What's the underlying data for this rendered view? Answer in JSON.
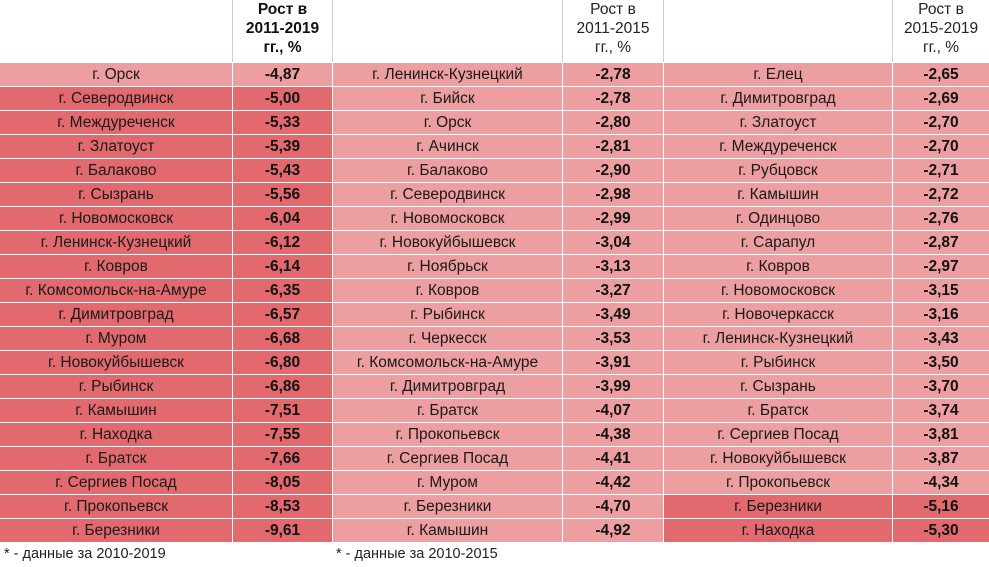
{
  "colors": {
    "light": "#ec9ea0",
    "dark": "#e26a6f",
    "border": "#ffffff"
  },
  "table1": {
    "header": [
      "Рост в",
      "2011-2019",
      "гг., %"
    ],
    "rows": [
      {
        "city": "г. Орск",
        "value": "-4,87",
        "tone": "light"
      },
      {
        "city": "г. Северодвинск",
        "value": "-5,00",
        "tone": "dark"
      },
      {
        "city": "г. Междуреченск",
        "value": "-5,33",
        "tone": "dark"
      },
      {
        "city": "г. Златоуст",
        "value": "-5,39",
        "tone": "dark"
      },
      {
        "city": "г. Балаково",
        "value": "-5,43",
        "tone": "dark"
      },
      {
        "city": "г. Сызрань",
        "value": "-5,56",
        "tone": "dark"
      },
      {
        "city": "г. Новомосковск",
        "value": "-6,04",
        "tone": "dark"
      },
      {
        "city": "г. Ленинск-Кузнецкий",
        "value": "-6,12",
        "tone": "dark"
      },
      {
        "city": "г. Ковров",
        "value": "-6,14",
        "tone": "dark"
      },
      {
        "city": "г. Комсомольск-на-Амуре",
        "value": "-6,35",
        "tone": "dark"
      },
      {
        "city": "г. Димитровград",
        "value": "-6,57",
        "tone": "dark"
      },
      {
        "city": "г. Муром",
        "value": "-6,68",
        "tone": "dark"
      },
      {
        "city": "г. Новокуйбышевск",
        "value": "-6,80",
        "tone": "dark"
      },
      {
        "city": "г. Рыбинск",
        "value": "-6,86",
        "tone": "dark"
      },
      {
        "city": "г. Камышин",
        "value": "-7,51",
        "tone": "dark"
      },
      {
        "city": "г. Находка",
        "value": "-7,55",
        "tone": "dark"
      },
      {
        "city": "г. Братск",
        "value": "-7,66",
        "tone": "dark"
      },
      {
        "city": "г. Сергиев Посад",
        "value": "-8,05",
        "tone": "dark"
      },
      {
        "city": "г. Прокопьевск",
        "value": "-8,53",
        "tone": "dark"
      },
      {
        "city": "г. Березники",
        "value": "-9,61",
        "tone": "dark"
      }
    ],
    "note": "* - данные за 2010-2019"
  },
  "table2": {
    "header": [
      "Рост в",
      "2011-2015",
      "гг., %"
    ],
    "rows": [
      {
        "city": "г. Ленинск-Кузнецкий",
        "value": "-2,78",
        "tone": "light"
      },
      {
        "city": "г. Бийск",
        "value": "-2,78",
        "tone": "light"
      },
      {
        "city": "г. Орск",
        "value": "-2,80",
        "tone": "light"
      },
      {
        "city": "г. Ачинск",
        "value": "-2,81",
        "tone": "light"
      },
      {
        "city": "г. Балаково",
        "value": "-2,90",
        "tone": "light"
      },
      {
        "city": "г. Северодвинск",
        "value": "-2,98",
        "tone": "light"
      },
      {
        "city": "г. Новомосковск",
        "value": "-2,99",
        "tone": "light"
      },
      {
        "city": "г. Новокуйбышевск",
        "value": "-3,04",
        "tone": "light"
      },
      {
        "city": "г. Ноябрьск",
        "value": "-3,13",
        "tone": "light"
      },
      {
        "city": "г. Ковров",
        "value": "-3,27",
        "tone": "light"
      },
      {
        "city": "г. Рыбинск",
        "value": "-3,49",
        "tone": "light"
      },
      {
        "city": "г. Черкесск",
        "value": "-3,53",
        "tone": "light"
      },
      {
        "city": "г. Комсомольск-на-Амуре",
        "value": "-3,91",
        "tone": "light"
      },
      {
        "city": "г. Димитровград",
        "value": "-3,99",
        "tone": "light"
      },
      {
        "city": "г. Братск",
        "value": "-4,07",
        "tone": "light"
      },
      {
        "city": "г. Прокопьевск",
        "value": "-4,38",
        "tone": "light"
      },
      {
        "city": "г. Сергиев Посад",
        "value": "-4,41",
        "tone": "light"
      },
      {
        "city": "г. Муром",
        "value": "-4,42",
        "tone": "light"
      },
      {
        "city": "г. Березники",
        "value": "-4,70",
        "tone": "light"
      },
      {
        "city": "г. Камышин",
        "value": "-4,92",
        "tone": "light"
      }
    ],
    "note": "* - данные за 2010-2015"
  },
  "table3": {
    "header": [
      "Рост в",
      "2015-2019",
      "гг., %"
    ],
    "rows": [
      {
        "city": "г. Елец",
        "value": "-2,65",
        "tone": "light"
      },
      {
        "city": "г. Димитровград",
        "value": "-2,69",
        "tone": "light"
      },
      {
        "city": "г. Златоуст",
        "value": "-2,70",
        "tone": "light"
      },
      {
        "city": "г. Междуреченск",
        "value": "-2,70",
        "tone": "light"
      },
      {
        "city": "г. Рубцовск",
        "value": "-2,71",
        "tone": "light"
      },
      {
        "city": "г. Камышин",
        "value": "-2,72",
        "tone": "light"
      },
      {
        "city": "г. Одинцово",
        "value": "-2,76",
        "tone": "light"
      },
      {
        "city": "г. Сарапул",
        "value": "-2,87",
        "tone": "light"
      },
      {
        "city": "г. Ковров",
        "value": "-2,97",
        "tone": "light"
      },
      {
        "city": "г. Новомосковск",
        "value": "-3,15",
        "tone": "light"
      },
      {
        "city": "г. Новочеркасск",
        "value": "-3,16",
        "tone": "light"
      },
      {
        "city": "г. Ленинск-Кузнецкий",
        "value": "-3,43",
        "tone": "light"
      },
      {
        "city": "г. Рыбинск",
        "value": "-3,50",
        "tone": "light"
      },
      {
        "city": "г. Сызрань",
        "value": "-3,70",
        "tone": "light"
      },
      {
        "city": "г. Братск",
        "value": "-3,74",
        "tone": "light"
      },
      {
        "city": "г. Сергиев Посад",
        "value": "-3,81",
        "tone": "light"
      },
      {
        "city": "г. Новокуйбышевск",
        "value": "-3,87",
        "tone": "light"
      },
      {
        "city": "г. Прокопьевск",
        "value": "-4,34",
        "tone": "light"
      },
      {
        "city": "г. Березники",
        "value": "-5,16",
        "tone": "dark"
      },
      {
        "city": "г. Находка",
        "value": "-5,30",
        "tone": "dark"
      }
    ]
  }
}
